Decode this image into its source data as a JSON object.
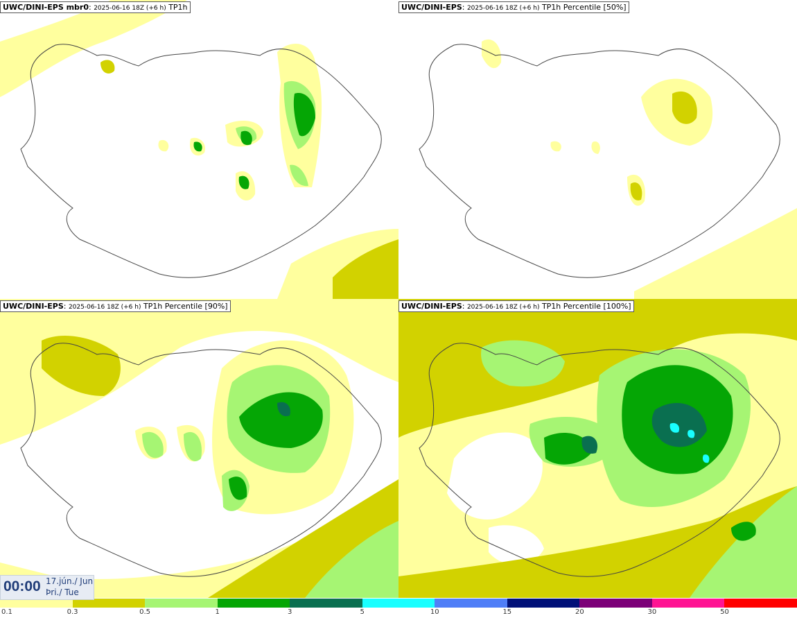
{
  "panels": [
    {
      "model": "UWC/DINI-EPS mbr0",
      "run": "2025-06-16 18Z (+6 h)",
      "product": "TP1h"
    },
    {
      "model": "UWC/DINI-EPS",
      "run": "2025-06-16 18Z (+6 h)",
      "product": "TP1h Percentile [50%]"
    },
    {
      "model": "UWC/DINI-EPS",
      "run": "2025-06-16 18Z (+6 h)",
      "product": "TP1h Percentile [90%]"
    },
    {
      "model": "UWC/DINI-EPS",
      "run": "2025-06-16 18Z (+6 h)",
      "product": "TP1h Percentile [100%]"
    }
  ],
  "clock": {
    "time": "00:00",
    "date_line1": "17.jún./ Jun",
    "date_line2": "Þri./ Tue"
  },
  "legend": {
    "ticks": [
      "0.1",
      "0.3",
      "0.5",
      "1",
      "3",
      "5",
      "10",
      "15",
      "20",
      "30",
      "50"
    ],
    "colors": [
      "#ffff9e",
      "#d2d200",
      "#a6f573",
      "#05a605",
      "#0a6f50",
      "#19ffff",
      "#4f7ef7",
      "#001078",
      "#7c0078",
      "#ff1493",
      "#ff0000"
    ]
  },
  "colors": {
    "light_yellow": "#ffff9e",
    "olive": "#d2d200",
    "light_green": "#a6f573",
    "green": "#05a605",
    "dark_green": "#0a6f50",
    "cyan": "#19ffff",
    "coastline": "#444444"
  }
}
